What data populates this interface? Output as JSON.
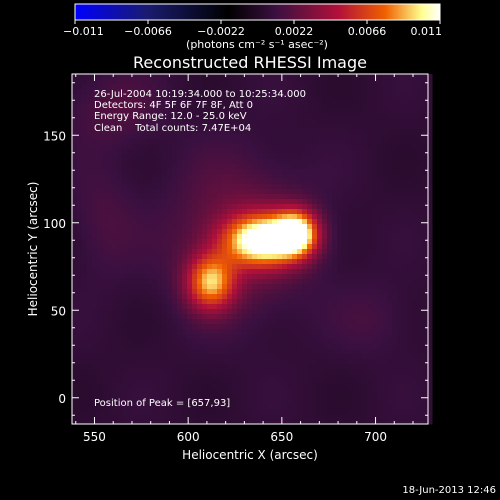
{
  "chart_data": {
    "type": "heatmap",
    "title": "Reconstructed RHESSI Image",
    "xlabel": "Heliocentric X (arcsec)",
    "ylabel": "Heliocentric Y (arcsec)",
    "xlim": [
      538,
      728
    ],
    "ylim": [
      -15,
      185
    ],
    "xticks": [
      550,
      600,
      650,
      700
    ],
    "yticks": [
      0,
      50,
      100,
      150
    ],
    "colorbar": {
      "range": [
        -0.011,
        0.011
      ],
      "ticks": [
        "−0.011",
        "−0.0066",
        "−0.0022",
        "0.0022",
        "0.0066",
        "0.011"
      ],
      "units_label": "(photons cm⁻² s⁻¹ asec⁻²)",
      "colors": [
        "#0000ff",
        "#1a1b6e",
        "#000000",
        "#3a1040",
        "#b0103a",
        "#f06000",
        "#ffff90",
        "#ffffff"
      ]
    },
    "annotations": [
      "26-Jul-2004 10:19:34.000 to 10:25:34.000",
      "Detectors: 4F 5F 6F 7F 8F, Att 0",
      "Energy Range: 12.0 - 25.0 keV",
      "Clean    Total counts: 7.47E+04"
    ],
    "peak_label": "Position of Peak = [657,93]",
    "peak": [
      657,
      93
    ],
    "sources": [
      {
        "x": 612,
        "y": 66,
        "peak": 0.0075,
        "sx": 9,
        "sy": 11
      },
      {
        "x": 640,
        "y": 90,
        "peak": 0.01,
        "sx": 14,
        "sy": 10
      },
      {
        "x": 658,
        "y": 94,
        "peak": 0.009,
        "sx": 8,
        "sy": 9
      },
      {
        "x": 628,
        "y": 92,
        "peak": 0.0025,
        "sx": 25,
        "sy": 30
      },
      {
        "x": 560,
        "y": 165,
        "peak": 0.0012,
        "sx": 18,
        "sy": 15
      },
      {
        "x": 555,
        "y": 100,
        "peak": 0.001,
        "sx": 12,
        "sy": 22
      },
      {
        "x": 700,
        "y": 45,
        "peak": 0.0008,
        "sx": 15,
        "sy": 15
      }
    ]
  },
  "footer": {
    "date": "18-Jun-2013 12:46"
  }
}
